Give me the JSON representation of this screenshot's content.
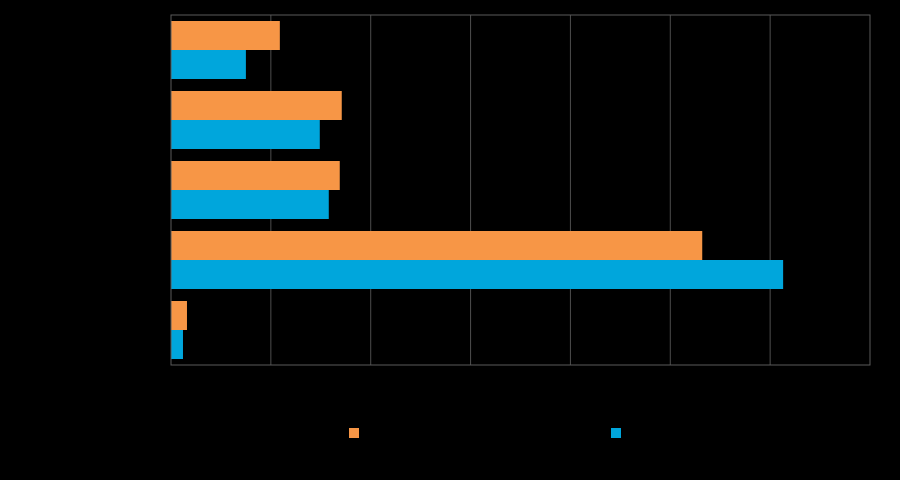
{
  "chart_data": {
    "type": "bar",
    "orientation": "horizontal",
    "title": "",
    "xlabel": "",
    "ylabel": "",
    "categories": [
      "",
      "",
      "",
      "",
      ""
    ],
    "xlim": [
      0,
      70
    ],
    "grid": true,
    "legend_position": "bottom",
    "series": [
      {
        "name": "",
        "color": "#F79646",
        "values": [
          10.9,
          17.1,
          16.9,
          53.2,
          1.6
        ]
      },
      {
        "name": "",
        "color": "#00A6DC",
        "values": [
          7.5,
          14.9,
          15.8,
          61.3,
          1.2
        ]
      }
    ]
  }
}
